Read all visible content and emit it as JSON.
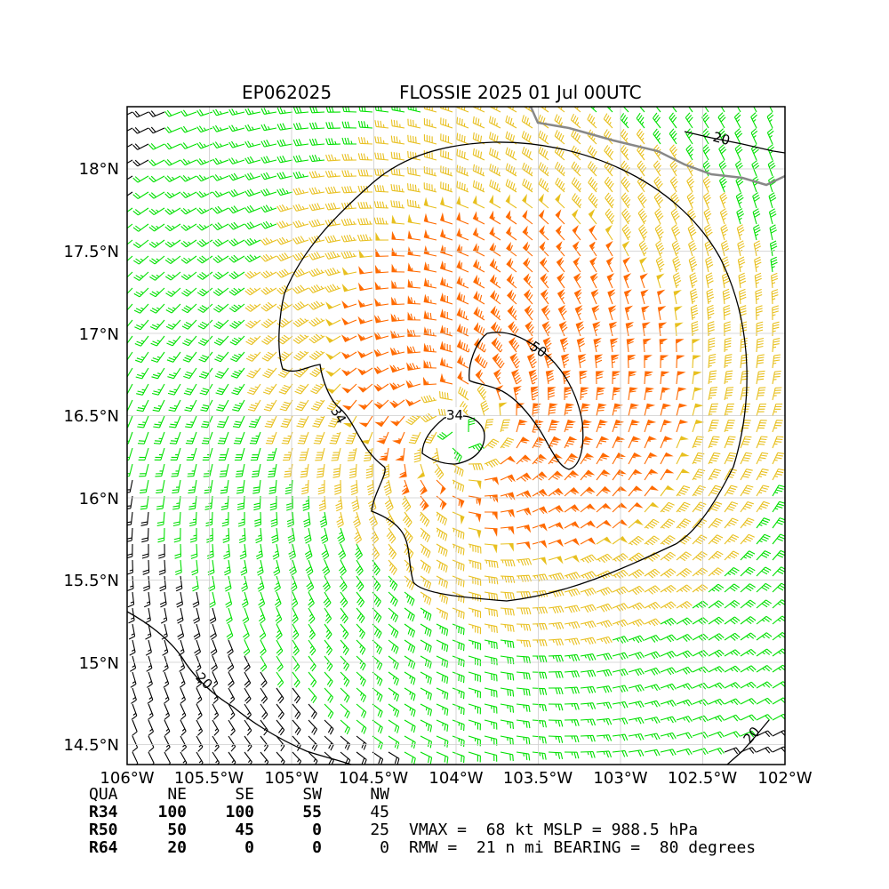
{
  "title": {
    "storm_id": "EP062025",
    "storm_info": "FLOSSIE 2025 01 Jul 00UTC"
  },
  "axes": {
    "lat_ticks": [
      "18°N",
      "17.5°N",
      "17°N",
      "16.5°N",
      "16°N",
      "15.5°N",
      "15°N",
      "14.5°N"
    ],
    "lon_ticks": [
      "106°W",
      "105.5°W",
      "105°W",
      "104.5°W",
      "104°W",
      "103.5°W",
      "103°W",
      "102.5°W",
      "102°W"
    ],
    "lat_range": [
      14.4,
      18.4
    ],
    "lon_range": [
      -106,
      -102
    ]
  },
  "contour_labels": {
    "c34_west": "34",
    "c34_center": "34",
    "c50": "50",
    "c20_ne": "20",
    "c20_sw": "20",
    "c20_se": "20"
  },
  "colors": {
    "below_34kt": "#00e000",
    "34_to_50kt": "#e8c020",
    "above_50kt": "#ff6a00",
    "below_20kt": "#000000",
    "coastline": "#888888"
  },
  "wind_radii": {
    "headers": [
      "QUA",
      "NE",
      "SE",
      "SW",
      "NW"
    ],
    "rows": [
      {
        "label": "R34",
        "values": [
          "100",
          "100",
          "55",
          "45"
        ]
      },
      {
        "label": "R50",
        "values": [
          "50",
          "45",
          "0",
          "25"
        ]
      },
      {
        "label": "R64",
        "values": [
          "20",
          "0",
          "0",
          "0"
        ]
      }
    ]
  },
  "stats": {
    "line1": "VMAX =  68 kt MSLP = 988.5 hPa",
    "line2": "RMW =  21 n mi BEARING =  80 degrees"
  }
}
